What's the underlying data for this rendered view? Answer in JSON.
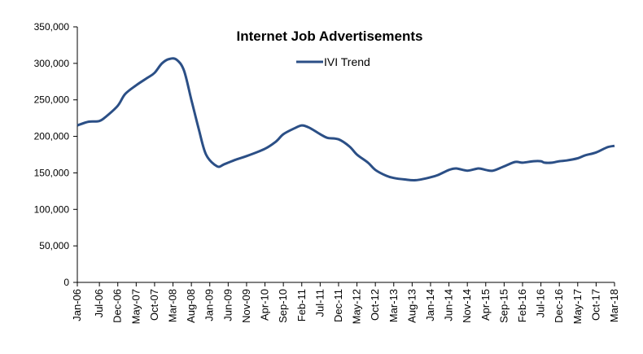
{
  "chart_data": {
    "type": "line",
    "title": "Internet Job Advertisements",
    "xlabel": "",
    "ylabel": "",
    "ylim": [
      0,
      350000
    ],
    "yticks": [
      "0",
      "50,000",
      "100,000",
      "150,000",
      "200,000",
      "250,000",
      "300,000",
      "350,000"
    ],
    "ytick_values": [
      0,
      50000,
      100000,
      150000,
      200000,
      250000,
      300000,
      350000
    ],
    "xtick_labels": [
      "Jan-06",
      "Jul-06",
      "Dec-06",
      "May-07",
      "Oct-07",
      "Mar-08",
      "Aug-08",
      "Jan-09",
      "Jun-09",
      "Nov-09",
      "Apr-10",
      "Sep-10",
      "Feb-11",
      "Jul-11",
      "Dec-11",
      "May-12",
      "Oct-12",
      "Mar-13",
      "Aug-13",
      "Jan-14",
      "Jun-14",
      "Nov-14",
      "Apr-15",
      "Sep-15",
      "Feb-16",
      "Jul-16",
      "Dec-16",
      "May-17",
      "Oct-17",
      "Mar-18"
    ],
    "legend": {
      "position": "top-center"
    },
    "grid": false,
    "series": [
      {
        "name": "IVI Trend",
        "color": "#2b4f86",
        "points": [
          [
            "Jan-06",
            215000
          ],
          [
            "Apr-06",
            220000
          ],
          [
            "Jul-06",
            221000
          ],
          [
            "Sep-06",
            228000
          ],
          [
            "Dec-06",
            242000
          ],
          [
            "Feb-07",
            258000
          ],
          [
            "May-07",
            270000
          ],
          [
            "Aug-07",
            280000
          ],
          [
            "Oct-07",
            287000
          ],
          [
            "Dec-07",
            300000
          ],
          [
            "Feb-08",
            306000
          ],
          [
            "Apr-08",
            305000
          ],
          [
            "Jun-08",
            290000
          ],
          [
            "Aug-08",
            250000
          ],
          [
            "Oct-08",
            210000
          ],
          [
            "Dec-08",
            175000
          ],
          [
            "Mar-09",
            159000
          ],
          [
            "May-09",
            162000
          ],
          [
            "Aug-09",
            168000
          ],
          [
            "Nov-09",
            173000
          ],
          [
            "Apr-10",
            183000
          ],
          [
            "Jul-10",
            193000
          ],
          [
            "Sep-10",
            203000
          ],
          [
            "Dec-10",
            211000
          ],
          [
            "Feb-11",
            215000
          ],
          [
            "Apr-11",
            212000
          ],
          [
            "Jul-11",
            203000
          ],
          [
            "Sep-11",
            198000
          ],
          [
            "Dec-11",
            196000
          ],
          [
            "Mar-12",
            186000
          ],
          [
            "May-12",
            175000
          ],
          [
            "Aug-12",
            164000
          ],
          [
            "Oct-12",
            154000
          ],
          [
            "Jan-13",
            146000
          ],
          [
            "Mar-13",
            143000
          ],
          [
            "Jun-13",
            141000
          ],
          [
            "Sep-13",
            140000
          ],
          [
            "Jan-14",
            144000
          ],
          [
            "Mar-14",
            147000
          ],
          [
            "Jun-14",
            154000
          ],
          [
            "Aug-14",
            156000
          ],
          [
            "Nov-14",
            153000
          ],
          [
            "Feb-15",
            156000
          ],
          [
            "Apr-15",
            154000
          ],
          [
            "Jun-15",
            153000
          ],
          [
            "Sep-15",
            159000
          ],
          [
            "Dec-15",
            165000
          ],
          [
            "Feb-16",
            164000
          ],
          [
            "May-16",
            166000
          ],
          [
            "Jul-16",
            166000
          ],
          [
            "Aug-16",
            164000
          ],
          [
            "Oct-16",
            164000
          ],
          [
            "Dec-16",
            166000
          ],
          [
            "Feb-17",
            167000
          ],
          [
            "May-17",
            170000
          ],
          [
            "Jul-17",
            174000
          ],
          [
            "Oct-17",
            178000
          ],
          [
            "Jan-18",
            185000
          ],
          [
            "Mar-18",
            187000
          ]
        ]
      }
    ]
  }
}
